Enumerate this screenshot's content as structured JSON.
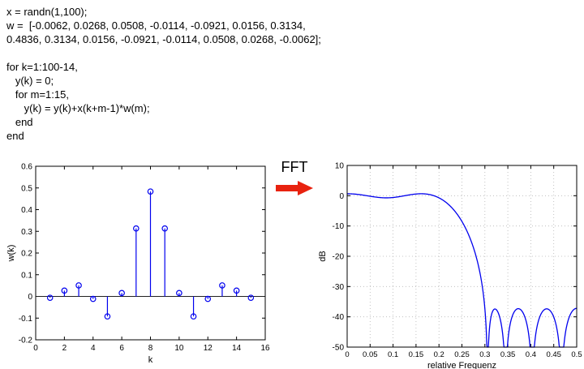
{
  "code": {
    "lines": [
      "x = randn(1,100);",
      "w =  [-0.0062, 0.0268, 0.0508, -0.0114, -0.0921, 0.0156, 0.3134,",
      "0.4836, 0.3134, 0.0156, -0.0921, -0.0114, 0.0508, 0.0268, -0.0062];",
      "",
      "for k=1:100-14,",
      "   y(k) = 0;",
      "   for m=1:15,",
      "      y(k) = y(k)+x(k+m-1)*w(m);",
      "   end",
      "end"
    ]
  },
  "arrow": {
    "label": "FFT",
    "color": "#e8220f"
  },
  "chart_data": [
    {
      "type": "stem",
      "title": "",
      "xlabel": "k",
      "ylabel": "w(k)",
      "xlim": [
        0,
        16
      ],
      "ylim": [
        -0.2,
        0.6
      ],
      "xticks": [
        0,
        2,
        4,
        6,
        8,
        10,
        12,
        14,
        16
      ],
      "yticks": [
        -0.2,
        -0.1,
        0,
        0.1,
        0.2,
        0.3,
        0.4,
        0.5,
        0.6
      ],
      "x": [
        1,
        2,
        3,
        4,
        5,
        6,
        7,
        8,
        9,
        10,
        11,
        12,
        13,
        14,
        15
      ],
      "values": [
        -0.0062,
        0.0268,
        0.0508,
        -0.0114,
        -0.0921,
        0.0156,
        0.3134,
        0.4836,
        0.3134,
        0.0156,
        -0.0921,
        -0.0114,
        0.0508,
        0.0268,
        -0.0062
      ],
      "line_color": "#0000ee",
      "grid": false
    },
    {
      "type": "line",
      "title": "",
      "xlabel": "relative Frequenz",
      "ylabel": "dB",
      "xlim": [
        0,
        0.5
      ],
      "ylim": [
        -50,
        10
      ],
      "xticks": [
        0,
        0.05,
        0.1,
        0.15,
        0.2,
        0.25,
        0.3,
        0.35,
        0.4,
        0.45,
        0.5
      ],
      "yticks": [
        10,
        0,
        -10,
        -20,
        -30,
        -40,
        -50
      ],
      "grid": true,
      "line_color": "#0000ee",
      "derivation": "20*log10(|H(f)|) with H(f) = sum_{m=1..15} w(m)*exp(-j*2*pi*f*m); magnitude response (FFT) of the coefficients w",
      "coefficients": [
        -0.0062,
        0.0268,
        0.0508,
        -0.0114,
        -0.0921,
        0.0156,
        0.3134,
        0.4836,
        0.3134,
        0.0156,
        -0.0921,
        -0.0114,
        0.0508,
        0.0268,
        -0.0062
      ],
      "key_readings": {
        "gain_at_0": 0.65,
        "passband_approx_dB": 0,
        "passband_edge": 0.2,
        "first_null_freq": 0.3,
        "sidelobe_peak_dB": -38,
        "value_at_0p5_dB": -37
      }
    }
  ]
}
